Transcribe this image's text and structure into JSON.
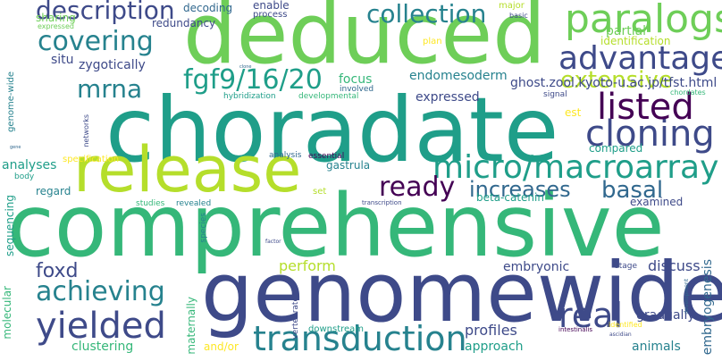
{
  "colors": {
    "dark_purple": "#440154",
    "indigo": "#3e4a89",
    "slate_blue": "#31688e",
    "teal": "#26828e",
    "sea_green": "#1f9e89",
    "green": "#35b779",
    "light_green": "#6ece58",
    "yellow_green": "#b5de2b",
    "yellow": "#fde725"
  },
  "words": [
    {
      "text": "deduced",
      "color": "#6ece58"
    },
    {
      "text": "choradate",
      "color": "#1f9e89"
    },
    {
      "text": "comprehensive",
      "color": "#35b779"
    },
    {
      "text": "genomewide",
      "color": "#3e4a89"
    },
    {
      "text": "release",
      "color": "#b5de2b"
    },
    {
      "text": "micro/macroarray",
      "color": "#1f9e89"
    },
    {
      "text": "transduction",
      "color": "#26828e"
    },
    {
      "text": "paralogs",
      "color": "#6ece58"
    },
    {
      "text": "advantage",
      "color": "#3e4a89"
    },
    {
      "text": "cloning",
      "color": "#3e4a89"
    },
    {
      "text": "listed",
      "color": "#440154"
    },
    {
      "text": "description",
      "color": "#3e4a89"
    },
    {
      "text": "covering",
      "color": "#26828e"
    },
    {
      "text": "collection",
      "color": "#26828e"
    },
    {
      "text": "fgf9/16/20",
      "color": "#1f9e89"
    },
    {
      "text": "achieving",
      "color": "#26828e"
    },
    {
      "text": "yielded",
      "color": "#3e4a89"
    },
    {
      "text": "ready",
      "color": "#440154"
    },
    {
      "text": "real",
      "color": "#3e4a89"
    },
    {
      "text": "extensive",
      "color": "#b5de2b"
    },
    {
      "text": "basal",
      "color": "#31688e"
    },
    {
      "text": "increases",
      "color": "#31688e"
    },
    {
      "text": "mrna",
      "color": "#26828e"
    },
    {
      "text": "foxd",
      "color": "#3e4a89"
    },
    {
      "text": "perform",
      "color": "#b5de2b"
    },
    {
      "text": "focus",
      "color": "#35b779"
    },
    {
      "text": "endomesoderm",
      "color": "#26828e"
    },
    {
      "text": "ghost.zool.kyoto-u.ac.jp/tfst.html",
      "color": "#3e4a89"
    },
    {
      "text": "expressed",
      "color": "#3e4a89"
    },
    {
      "text": "sharing",
      "color": "#6ece58"
    },
    {
      "text": "redundancy",
      "color": "#3e4a89"
    },
    {
      "text": "decoding",
      "color": "#31688e"
    },
    {
      "text": "enable",
      "color": "#3e4a89"
    },
    {
      "text": "process",
      "color": "#3e4a89"
    },
    {
      "text": "major",
      "color": "#b5de2b"
    },
    {
      "text": "basic",
      "color": "#3e4a89"
    },
    {
      "text": "cdna",
      "color": "#1f9e89"
    },
    {
      "text": "understanding",
      "color": "#6ece58"
    },
    {
      "text": "requires",
      "color": "#3e4a89"
    },
    {
      "text": "embryos",
      "color": "#440154"
    },
    {
      "text": "expressed",
      "color": "#6ece58"
    },
    {
      "text": "partial",
      "color": "#6ece58"
    },
    {
      "text": "identification",
      "color": "#b5de2b"
    },
    {
      "text": "situ",
      "color": "#3e4a89"
    },
    {
      "text": "zygotically",
      "color": "#3e4a89"
    },
    {
      "text": "plan",
      "color": "#fde725"
    },
    {
      "text": "genome-wide",
      "color": "#26828e"
    },
    {
      "text": "hybridization",
      "color": "#1f9e89"
    },
    {
      "text": "developmental",
      "color": "#35b779"
    },
    {
      "text": "involved",
      "color": "#31688e"
    },
    {
      "text": "signal",
      "color": "#3e4a89"
    },
    {
      "text": "chordates",
      "color": "#35b779"
    },
    {
      "text": "networks",
      "color": "#3e4a89"
    },
    {
      "text": "est",
      "color": "#fde725"
    },
    {
      "text": "compared",
      "color": "#1f9e89"
    },
    {
      "text": "analyses",
      "color": "#1f9e89"
    },
    {
      "text": "specification",
      "color": "#fde725"
    },
    {
      "text": "analysis",
      "color": "#31688e"
    },
    {
      "text": "essential",
      "color": "#440154"
    },
    {
      "text": "gastrula",
      "color": "#26828e"
    },
    {
      "text": "body",
      "color": "#1f9e89"
    },
    {
      "text": "regard",
      "color": "#26828e"
    },
    {
      "text": "set",
      "color": "#b5de2b"
    },
    {
      "text": "beta-catenin",
      "color": "#1f9e89"
    },
    {
      "text": "examined",
      "color": "#3e4a89"
    },
    {
      "text": "sequencing",
      "color": "#1f9e89"
    },
    {
      "text": "studies",
      "color": "#35b779"
    },
    {
      "text": "revealed",
      "color": "#26828e"
    },
    {
      "text": "species",
      "color": "#26828e"
    },
    {
      "text": "transcription",
      "color": "#3e4a89"
    },
    {
      "text": "embryonic",
      "color": "#3e4a89"
    },
    {
      "text": "stage",
      "color": "#3e4a89"
    },
    {
      "text": "discuss",
      "color": "#3e4a89"
    },
    {
      "text": "embryogenesis",
      "color": "#31688e"
    },
    {
      "text": "molecular",
      "color": "#35b779"
    },
    {
      "text": "maternally",
      "color": "#35b779"
    },
    {
      "text": "vertebrate",
      "color": "#3e4a89"
    },
    {
      "text": "downstream",
      "color": "#1f9e89"
    },
    {
      "text": "profiles",
      "color": "#3e4a89"
    },
    {
      "text": "approach",
      "color": "#1f9e89"
    },
    {
      "text": "gradually",
      "color": "#3e4a89"
    },
    {
      "text": "animals",
      "color": "#26828e"
    },
    {
      "text": "and/or",
      "color": "#fde725"
    },
    {
      "text": "clustering",
      "color": "#35b779"
    },
    {
      "text": "intestinalis",
      "color": "#440154"
    },
    {
      "text": "identified",
      "color": "#fde725"
    },
    {
      "text": "ascidian",
      "color": "#3e4a89"
    },
    {
      "text": "development",
      "color": "#31688e"
    },
    {
      "text": "factor",
      "color": "#3e4a89"
    },
    {
      "text": "clone",
      "color": "#31688e"
    },
    {
      "text": "gene",
      "color": "#31688e"
    }
  ]
}
